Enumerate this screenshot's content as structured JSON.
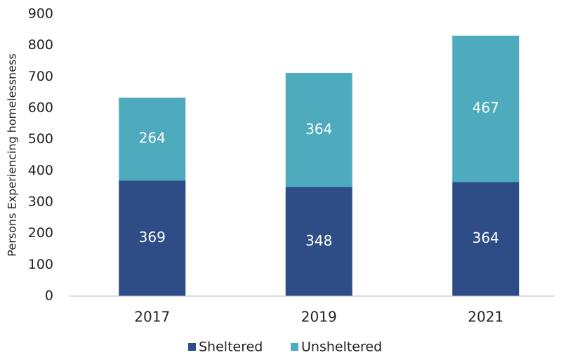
{
  "chart_data": {
    "type": "stacked_bar",
    "y_label": "Persons Experiencing homelessness",
    "categories": [
      "2017",
      "2019",
      "2021"
    ],
    "series": [
      {
        "name": "Sheltered",
        "color": "#2e4d87",
        "values": [
          369,
          348,
          364
        ]
      },
      {
        "name": "Unsheltered",
        "color": "#4eabbd",
        "values": [
          264,
          364,
          467
        ]
      }
    ],
    "ylim": [
      0,
      900
    ],
    "yticks": [
      0,
      100,
      200,
      300,
      400,
      500,
      600,
      700,
      800,
      900
    ],
    "legend": "bottom"
  }
}
